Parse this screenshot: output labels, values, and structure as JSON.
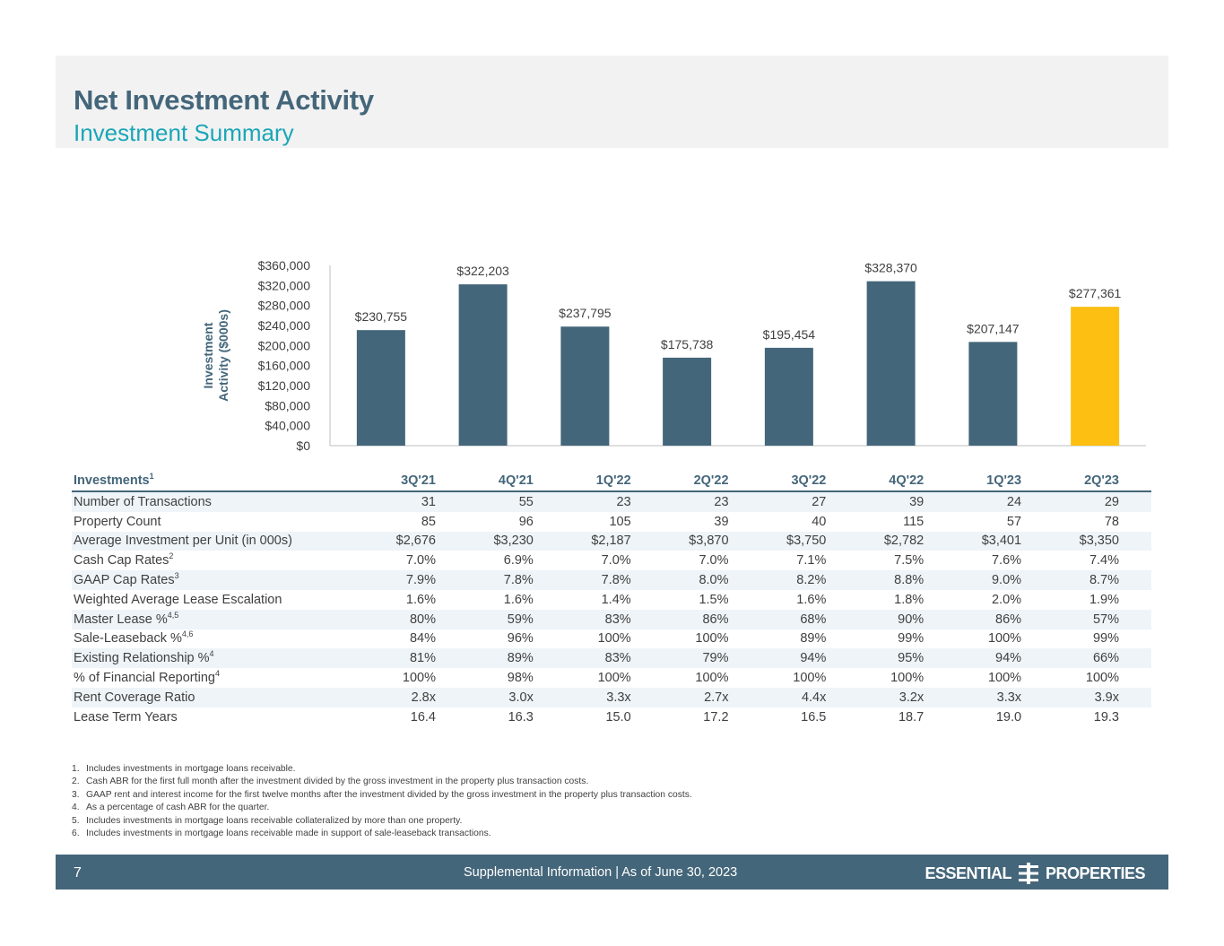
{
  "header": {
    "title": "Net Investment Activity",
    "subtitle": "Investment Summary"
  },
  "chart_data": {
    "type": "bar",
    "ylabel": "Investment Activity ($000s)",
    "categories": [
      "3Q'21",
      "4Q'21",
      "1Q'22",
      "2Q'22",
      "3Q'22",
      "4Q'22",
      "1Q'23",
      "2Q'23"
    ],
    "values": [
      230755,
      322203,
      237795,
      175738,
      195454,
      328370,
      207147,
      277361
    ],
    "data_labels": [
      "$230,755",
      "$322,203",
      "$237,795",
      "$175,738",
      "$195,454",
      "$328,370",
      "$207,147",
      "$277,361"
    ],
    "ylim": [
      0,
      360000
    ],
    "yticks": [
      0,
      40000,
      80000,
      120000,
      160000,
      200000,
      240000,
      280000,
      320000,
      360000
    ],
    "ytick_labels": [
      "$0",
      "$40,000",
      "$80,000",
      "$120,000",
      "$160,000",
      "$200,000",
      "$240,000",
      "$280,000",
      "$320,000",
      "$360,000"
    ],
    "colors": {
      "default": "#44667a",
      "highlight": "#fcbf12"
    },
    "highlight_index": 7,
    "grid": false,
    "legend": "none"
  },
  "table": {
    "header_label": "Investments",
    "header_sup": "1",
    "columns": [
      "3Q'21",
      "4Q'21",
      "1Q'22",
      "2Q'22",
      "3Q'22",
      "4Q'22",
      "1Q'23",
      "2Q'23"
    ],
    "rows": [
      {
        "label": "Number of Transactions",
        "sup": "",
        "values": [
          "31",
          "55",
          "23",
          "23",
          "27",
          "39",
          "24",
          "29"
        ]
      },
      {
        "label": "Property Count",
        "sup": "",
        "values": [
          "85",
          "96",
          "105",
          "39",
          "40",
          "115",
          "57",
          "78"
        ]
      },
      {
        "label": "Average Investment per Unit (in 000s)",
        "sup": "",
        "values": [
          "$2,676",
          "$3,230",
          "$2,187",
          "$3,870",
          "$3,750",
          "$2,782",
          "$3,401",
          "$3,350"
        ]
      },
      {
        "label": "Cash Cap Rates",
        "sup": "2",
        "values": [
          "7.0%",
          "6.9%",
          "7.0%",
          "7.0%",
          "7.1%",
          "7.5%",
          "7.6%",
          "7.4%"
        ]
      },
      {
        "label": "GAAP Cap Rates",
        "sup": "3",
        "values": [
          "7.9%",
          "7.8%",
          "7.8%",
          "8.0%",
          "8.2%",
          "8.8%",
          "9.0%",
          "8.7%"
        ]
      },
      {
        "label": "Weighted Average Lease Escalation",
        "sup": "",
        "values": [
          "1.6%",
          "1.6%",
          "1.4%",
          "1.5%",
          "1.6%",
          "1.8%",
          "2.0%",
          "1.9%"
        ]
      },
      {
        "label": "Master Lease %",
        "sup": "4,5",
        "values": [
          "80%",
          "59%",
          "83%",
          "86%",
          "68%",
          "90%",
          "86%",
          "57%"
        ]
      },
      {
        "label": "Sale-Leaseback %",
        "sup": "4,6",
        "values": [
          "84%",
          "96%",
          "100%",
          "100%",
          "89%",
          "99%",
          "100%",
          "99%"
        ]
      },
      {
        "label": "Existing Relationship %",
        "sup": "4",
        "values": [
          "81%",
          "89%",
          "83%",
          "79%",
          "94%",
          "95%",
          "94%",
          "66%"
        ]
      },
      {
        "label": "% of Financial Reporting",
        "sup": "4",
        "values": [
          "100%",
          "98%",
          "100%",
          "100%",
          "100%",
          "100%",
          "100%",
          "100%"
        ]
      },
      {
        "label": "Rent Coverage Ratio",
        "sup": "",
        "values": [
          "2.8x",
          "3.0x",
          "3.3x",
          "2.7x",
          "4.4x",
          "3.2x",
          "3.3x",
          "3.9x"
        ]
      },
      {
        "label": "Lease Term Years",
        "sup": "",
        "values": [
          "16.4",
          "16.3",
          "15.0",
          "17.2",
          "16.5",
          "18.7",
          "19.0",
          "19.3"
        ]
      }
    ]
  },
  "footnotes": [
    {
      "num": "1.",
      "text": "Includes investments in mortgage loans receivable."
    },
    {
      "num": "2.",
      "text": "Cash ABR for the first full month after the investment divided by the gross investment in the property plus transaction costs."
    },
    {
      "num": "3.",
      "text": "GAAP rent and interest income for the first twelve months after the investment divided by the gross investment in the property plus transaction costs."
    },
    {
      "num": "4.",
      "text": "As a percentage of cash ABR for the quarter."
    },
    {
      "num": "5.",
      "text": "Includes investments in mortgage loans receivable collateralized by more than one property."
    },
    {
      "num": "6.",
      "text": "Includes investments in mortgage loans receivable made in support of sale-leaseback transactions."
    }
  ],
  "footer": {
    "page_number": "7",
    "text": "Supplemental Information |  As of June 30, 2023",
    "logo_left": "ESSENTIAL",
    "logo_right": "PROPERTIES"
  }
}
